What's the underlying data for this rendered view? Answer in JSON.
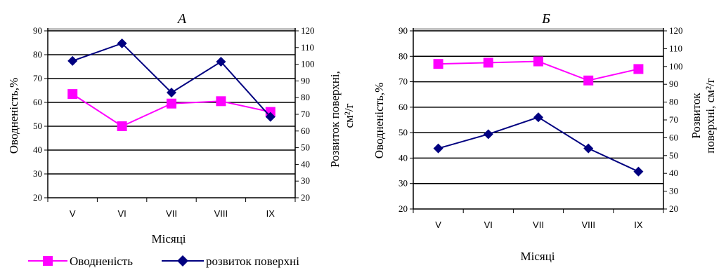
{
  "legend": {
    "items": [
      {
        "label": "Оводненість",
        "color": "#ff00ff",
        "marker": "square"
      },
      {
        "label": "розвиток поверхні",
        "color": "#000080",
        "marker": "diamond"
      }
    ]
  },
  "chart_data": [
    {
      "type": "line",
      "title": "А",
      "categories": [
        "V",
        "VI",
        "VII",
        "VIII",
        "IX"
      ],
      "xlabel": "Місяці",
      "ylabel_left": "Оводненість,%",
      "ylabel_right_line1": "Розвиток поверхні,",
      "ylabel_right_line2": "см²/г",
      "ylim_left": [
        20,
        90
      ],
      "yticks_left": [
        20,
        30,
        40,
        50,
        60,
        70,
        80,
        90
      ],
      "ylim_right": [
        20,
        120
      ],
      "yticks_right": [
        20,
        30,
        40,
        50,
        60,
        70,
        80,
        90,
        100,
        110,
        120
      ],
      "grid": true,
      "series": [
        {
          "name": "Оводненість",
          "axis": "left",
          "color": "#ff00ff",
          "marker": "square",
          "values": [
            63.5,
            50,
            59.5,
            60.5,
            56
          ]
        },
        {
          "name": "розвиток поверхні",
          "axis": "right",
          "color": "#000080",
          "marker": "diamond",
          "values": [
            102,
            112.5,
            83,
            101.5,
            68.5
          ]
        }
      ]
    },
    {
      "type": "line",
      "title": "Б",
      "categories": [
        "V",
        "VI",
        "VII",
        "VIII",
        "IX"
      ],
      "xlabel": "Місяці",
      "ylabel_left": "Оводненість,%",
      "ylabel_right_line1": "Розвиток",
      "ylabel_right_line2": "поверхні, см²/г",
      "ylim_left": [
        20,
        90
      ],
      "yticks_left": [
        20,
        30,
        40,
        50,
        60,
        70,
        80,
        90
      ],
      "ylim_right": [
        20,
        120
      ],
      "yticks_right": [
        20,
        30,
        40,
        50,
        60,
        70,
        80,
        90,
        100,
        110,
        120
      ],
      "grid": true,
      "series": [
        {
          "name": "Оводненість",
          "axis": "left",
          "color": "#ff00ff",
          "marker": "square",
          "values": [
            77,
            77.5,
            78,
            70.5,
            75
          ]
        },
        {
          "name": "розвиток поверхні",
          "axis": "right",
          "color": "#000080",
          "marker": "diamond",
          "values": [
            54,
            62,
            71.5,
            54,
            41
          ]
        }
      ]
    }
  ]
}
